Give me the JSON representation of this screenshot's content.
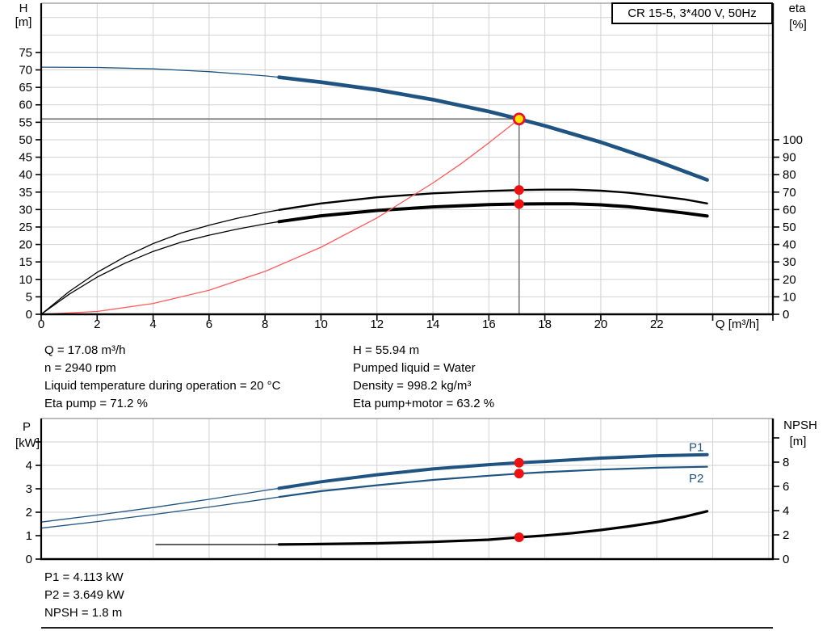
{
  "header": {
    "pump_type_box": "CR 15-5, 3*400 V, 50Hz"
  },
  "colors": {
    "curve_blue": "#1f5382",
    "curve_black": "#000000",
    "curve_red": "#ff5a5a",
    "marker_red": "#ee1111",
    "marker_yellow_fill": "#ffe400",
    "marker_yellow_ring": "#e8112d",
    "grid": "#d2d2d2",
    "chart_top_border": "#a6a6a6",
    "crosshair": "#787878",
    "axis": "#000000",
    "text": "#000000"
  },
  "operating_point_info": {
    "left": [
      "Q = 17.08 m³/h",
      "n = 2940 rpm",
      "Liquid temperature during operation = 20 °C",
      "Eta pump = 71.2 %"
    ],
    "right": [
      "H = 55.94 m",
      "Pumped liquid = Water",
      "Density = 998.2 kg/m³",
      "Eta pump+motor = 63.2 %"
    ]
  },
  "power_info": [
    "P1 = 4.113 kW",
    "P2 = 3.649 kW",
    "NPSH = 1.8 m"
  ],
  "chart_data": [
    {
      "id": "head-efficiency-chart",
      "type": "line",
      "title": "CR 15-5, 3*400 V, 50Hz",
      "x_axis": {
        "label": "Q [m³/h]",
        "min": 0,
        "max": 26.15,
        "labeled_ticks": [
          0,
          2,
          4,
          6,
          8,
          10,
          12,
          14,
          16,
          18,
          20,
          22
        ],
        "minor_ticks": [
          24,
          26.15
        ],
        "grid_step": 2
      },
      "y_left": {
        "label_lines": [
          "H",
          "[m]"
        ],
        "min": 0,
        "max": 89.1,
        "labeled_ticks": [
          0,
          5,
          10,
          15,
          20,
          25,
          30,
          35,
          40,
          45,
          50,
          55,
          60,
          65,
          70,
          75
        ],
        "grid_step": 5,
        "grid_max": 85
      },
      "y_right": {
        "label_lines": [
          "eta",
          "[%]"
        ],
        "min": 0,
        "max": 178.2,
        "labeled_ticks": [
          0,
          10,
          20,
          30,
          40,
          50,
          60,
          70,
          80,
          90,
          100
        ],
        "minor_ticks": []
      },
      "series": [
        {
          "id": "head-curve-low-flow",
          "axis": "left",
          "color": "curve_blue",
          "width": 1.3,
          "points": [
            [
              0,
              70.8
            ],
            [
              2,
              70.7
            ],
            [
              4,
              70.3
            ],
            [
              6,
              69.5
            ],
            [
              8,
              68.3
            ],
            [
              8.5,
              67.9
            ]
          ]
        },
        {
          "id": "head-curve-duty-range",
          "axis": "left",
          "color": "curve_blue",
          "width": 4.6,
          "points": [
            [
              8.5,
              67.9
            ],
            [
              10,
              66.5
            ],
            [
              12,
              64.3
            ],
            [
              14,
              61.5
            ],
            [
              16,
              58.1
            ],
            [
              17.08,
              55.94
            ],
            [
              18,
              54.0
            ],
            [
              20,
              49.3
            ],
            [
              22,
              43.9
            ],
            [
              23.8,
              38.5
            ]
          ]
        },
        {
          "id": "eta-pump-curve-low-flow",
          "axis": "right",
          "color": "curve_black",
          "width": 1.3,
          "points": [
            [
              0,
              0
            ],
            [
              1,
              13
            ],
            [
              2,
              24
            ],
            [
              3,
              33
            ],
            [
              4,
              40.5
            ],
            [
              5,
              46.5
            ],
            [
              6,
              51
            ],
            [
              7,
              55
            ],
            [
              8,
              58.3
            ],
            [
              8.5,
              59.8
            ]
          ]
        },
        {
          "id": "eta-pump-curve-duty-range",
          "axis": "right",
          "color": "curve_black",
          "width": 2.4,
          "points": [
            [
              8.5,
              59.8
            ],
            [
              10,
              63.5
            ],
            [
              12,
              67
            ],
            [
              14,
              69.3
            ],
            [
              16,
              70.7
            ],
            [
              17.08,
              71.2
            ],
            [
              18,
              71.4
            ],
            [
              19,
              71.4
            ],
            [
              20,
              70.8
            ],
            [
              21,
              69.6
            ],
            [
              22,
              67.8
            ],
            [
              23,
              65.8
            ],
            [
              23.8,
              63.5
            ]
          ]
        },
        {
          "id": "eta-pump-motor-curve-low-flow",
          "axis": "right",
          "color": "curve_black",
          "width": 1.3,
          "points": [
            [
              0,
              0
            ],
            [
              1,
              11.5
            ],
            [
              2,
              21.3
            ],
            [
              3,
              29.3
            ],
            [
              4,
              36
            ],
            [
              5,
              41.3
            ],
            [
              6,
              45.3
            ],
            [
              7,
              48.8
            ],
            [
              8,
              51.8
            ],
            [
              8.5,
              53.1
            ]
          ]
        },
        {
          "id": "eta-pump-motor-curve-duty-range",
          "axis": "right",
          "color": "curve_black",
          "width": 4,
          "points": [
            [
              8.5,
              53.1
            ],
            [
              10,
              56.4
            ],
            [
              12,
              59.5
            ],
            [
              14,
              61.5
            ],
            [
              16,
              62.8
            ],
            [
              17.08,
              63.2
            ],
            [
              18,
              63.3
            ],
            [
              19,
              63.3
            ],
            [
              20,
              62.7
            ],
            [
              21,
              61.6
            ],
            [
              22,
              59.9
            ],
            [
              23,
              58
            ],
            [
              23.8,
              56.3
            ]
          ]
        },
        {
          "id": "system-curve",
          "axis": "left",
          "color": "curve_red",
          "width": 1.3,
          "points": [
            [
              0,
              0
            ],
            [
              2,
              0.8
            ],
            [
              4,
              3.1
            ],
            [
              6,
              6.9
            ],
            [
              8,
              12.3
            ],
            [
              10,
              19.2
            ],
            [
              12,
              27.6
            ],
            [
              14,
              37.6
            ],
            [
              15,
              43.1
            ],
            [
              16,
              49.1
            ],
            [
              17.08,
              55.94
            ]
          ]
        }
      ],
      "crosshair": {
        "q": 17.08,
        "h": 55.94
      },
      "markers": [
        {
          "id": "duty-point-marker",
          "q": 17.08,
          "value": 55.94,
          "axis": "left",
          "style": "duty"
        },
        {
          "id": "eta-pump-point-marker",
          "q": 17.08,
          "value": 71.2,
          "axis": "right",
          "style": "red"
        },
        {
          "id": "eta-pump-motor-point-marker",
          "q": 17.08,
          "value": 63.2,
          "axis": "right",
          "style": "red"
        }
      ],
      "curve_labels": []
    },
    {
      "id": "power-npsh-chart",
      "type": "line",
      "title": "",
      "x_axis": {
        "label": "",
        "min": 0,
        "max": 26.15,
        "labeled_ticks": [],
        "minor_ticks": [],
        "grid_step": 2
      },
      "y_left": {
        "label_lines": [
          "P",
          "[kW]"
        ],
        "min": 0,
        "max": 6,
        "labeled_ticks": [
          0,
          1,
          2,
          3,
          4
        ],
        "minor_ticks": [
          5
        ],
        "grid_step": 1,
        "grid_max": 5
      },
      "y_right": {
        "label_lines": [
          "NPSH",
          "[m]"
        ],
        "min": 0,
        "max": 11.6,
        "labeled_ticks": [
          0,
          2,
          4,
          6,
          8
        ],
        "minor_ticks": [
          10
        ]
      },
      "series": [
        {
          "id": "p1-curve-low-flow",
          "axis": "left",
          "color": "curve_blue",
          "width": 1.3,
          "points": [
            [
              0,
              1.58
            ],
            [
              2,
              1.88
            ],
            [
              4,
              2.2
            ],
            [
              6,
              2.55
            ],
            [
              8,
              2.93
            ],
            [
              8.5,
              3.02
            ]
          ]
        },
        {
          "id": "p1-curve-duty-range",
          "axis": "left",
          "color": "curve_blue",
          "width": 4,
          "points": [
            [
              8.5,
              3.02
            ],
            [
              10,
              3.3
            ],
            [
              12,
              3.6
            ],
            [
              14,
              3.85
            ],
            [
              16,
              4.03
            ],
            [
              17.08,
              4.113
            ],
            [
              18,
              4.17
            ],
            [
              20,
              4.31
            ],
            [
              22,
              4.41
            ],
            [
              23.8,
              4.46
            ]
          ]
        },
        {
          "id": "p2-curve-low-flow",
          "axis": "left",
          "color": "curve_blue",
          "width": 1.3,
          "points": [
            [
              0,
              1.32
            ],
            [
              2,
              1.6
            ],
            [
              4,
              1.9
            ],
            [
              6,
              2.22
            ],
            [
              8,
              2.56
            ],
            [
              8.5,
              2.65
            ]
          ]
        },
        {
          "id": "p2-curve-duty-range",
          "axis": "left",
          "color": "curve_blue",
          "width": 2.2,
          "points": [
            [
              8.5,
              2.65
            ],
            [
              10,
              2.9
            ],
            [
              12,
              3.15
            ],
            [
              14,
              3.38
            ],
            [
              16,
              3.56
            ],
            [
              17.08,
              3.649
            ],
            [
              18,
              3.71
            ],
            [
              20,
              3.82
            ],
            [
              22,
              3.9
            ],
            [
              23.8,
              3.94
            ]
          ]
        },
        {
          "id": "npsh-curve-low-flow",
          "axis": "right",
          "color": "curve_black",
          "width": 1.3,
          "points": [
            [
              4.1,
              1.2
            ],
            [
              6,
              1.2
            ],
            [
              8,
              1.2
            ],
            [
              8.5,
              1.21
            ]
          ]
        },
        {
          "id": "npsh-curve-duty-range",
          "axis": "right",
          "color": "curve_black",
          "width": 3.2,
          "points": [
            [
              8.5,
              1.21
            ],
            [
              10,
              1.24
            ],
            [
              12,
              1.3
            ],
            [
              14,
              1.42
            ],
            [
              16,
              1.6
            ],
            [
              17.08,
              1.8
            ],
            [
              18,
              1.95
            ],
            [
              19,
              2.15
            ],
            [
              20,
              2.4
            ],
            [
              21,
              2.7
            ],
            [
              22,
              3.05
            ],
            [
              23,
              3.5
            ],
            [
              23.8,
              3.95
            ]
          ]
        }
      ],
      "crosshair": null,
      "markers": [
        {
          "id": "p1-point-marker",
          "q": 17.08,
          "value": 4.113,
          "axis": "left",
          "style": "red"
        },
        {
          "id": "p2-point-marker",
          "q": 17.08,
          "value": 3.649,
          "axis": "left",
          "style": "red"
        },
        {
          "id": "npsh-point-marker",
          "q": 17.08,
          "value": 1.8,
          "axis": "right",
          "style": "red"
        }
      ],
      "curve_labels": [
        {
          "text": "P1",
          "q": 23.15,
          "value": 4.78,
          "axis": "left"
        },
        {
          "text": "P2",
          "q": 23.15,
          "value": 3.44,
          "axis": "left"
        }
      ]
    }
  ]
}
